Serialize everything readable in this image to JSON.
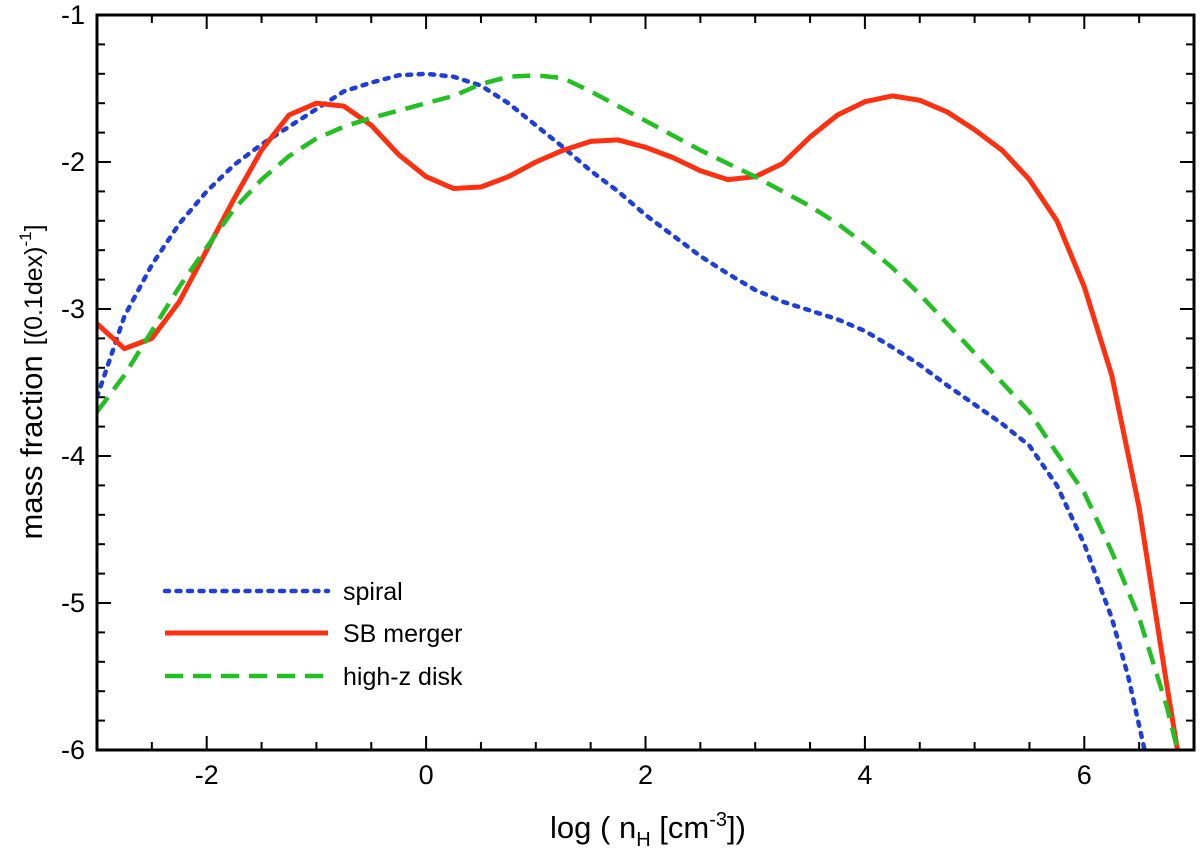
{
  "chart_data": {
    "type": "line",
    "title": "",
    "xlabel": {
      "prefix": "log ( n",
      "sub": "H",
      "mid": " [cm",
      "sup": "-3",
      "suffix": "])"
    },
    "ylabel": {
      "main": "mass fraction",
      "bracket_open": "[(0.1dex)",
      "sup": "-1",
      "bracket_close": "]"
    },
    "xlim": [
      -3,
      7
    ],
    "ylim": [
      -6,
      -1
    ],
    "x_ticks": [
      -2,
      0,
      2,
      4,
      6
    ],
    "x_tick_labels": [
      "-2",
      "0",
      "2",
      "4",
      "6"
    ],
    "y_ticks": [
      -6,
      -5,
      -4,
      -3,
      -2,
      -1
    ],
    "y_tick_labels": [
      "-6",
      "-5",
      "-4",
      "-3",
      "-2",
      "-1"
    ],
    "legend_position": "bottom-left",
    "series": [
      {
        "name": "spiral",
        "color": "#1f3fd8",
        "style": "dotted",
        "points": [
          [
            -3,
            -3.6
          ],
          [
            -2.75,
            -3.05
          ],
          [
            -2.5,
            -2.7
          ],
          [
            -2.25,
            -2.42
          ],
          [
            -2,
            -2.2
          ],
          [
            -1.75,
            -2.02
          ],
          [
            -1.5,
            -1.88
          ],
          [
            -1.25,
            -1.76
          ],
          [
            -1,
            -1.64
          ],
          [
            -0.75,
            -1.52
          ],
          [
            -0.5,
            -1.46
          ],
          [
            -0.25,
            -1.41
          ],
          [
            0,
            -1.4
          ],
          [
            0.25,
            -1.42
          ],
          [
            0.5,
            -1.48
          ],
          [
            0.75,
            -1.6
          ],
          [
            1,
            -1.75
          ],
          [
            1.25,
            -1.9
          ],
          [
            1.5,
            -2.06
          ],
          [
            1.75,
            -2.2
          ],
          [
            2,
            -2.36
          ],
          [
            2.25,
            -2.5
          ],
          [
            2.5,
            -2.64
          ],
          [
            2.75,
            -2.76
          ],
          [
            3,
            -2.87
          ],
          [
            3.25,
            -2.95
          ],
          [
            3.5,
            -3.01
          ],
          [
            3.75,
            -3.07
          ],
          [
            4,
            -3.15
          ],
          [
            4.25,
            -3.26
          ],
          [
            4.5,
            -3.38
          ],
          [
            4.75,
            -3.52
          ],
          [
            5,
            -3.65
          ],
          [
            5.25,
            -3.78
          ],
          [
            5.5,
            -3.93
          ],
          [
            5.75,
            -4.2
          ],
          [
            6,
            -4.6
          ],
          [
            6.25,
            -5.1
          ],
          [
            6.4,
            -5.5
          ],
          [
            6.55,
            -6
          ]
        ]
      },
      {
        "name": "SB merger",
        "color": "#ff3010",
        "style": "solid",
        "points": [
          [
            -3,
            -3.1
          ],
          [
            -2.75,
            -3.27
          ],
          [
            -2.5,
            -3.2
          ],
          [
            -2.25,
            -2.95
          ],
          [
            -2,
            -2.6
          ],
          [
            -1.75,
            -2.25
          ],
          [
            -1.5,
            -1.92
          ],
          [
            -1.25,
            -1.68
          ],
          [
            -1,
            -1.6
          ],
          [
            -0.75,
            -1.62
          ],
          [
            -0.5,
            -1.75
          ],
          [
            -0.25,
            -1.95
          ],
          [
            0,
            -2.1
          ],
          [
            0.25,
            -2.18
          ],
          [
            0.5,
            -2.17
          ],
          [
            0.75,
            -2.1
          ],
          [
            1,
            -2
          ],
          [
            1.25,
            -1.92
          ],
          [
            1.5,
            -1.86
          ],
          [
            1.75,
            -1.85
          ],
          [
            2,
            -1.9
          ],
          [
            2.25,
            -1.97
          ],
          [
            2.5,
            -2.06
          ],
          [
            2.75,
            -2.12
          ],
          [
            3,
            -2.1
          ],
          [
            3.25,
            -2.01
          ],
          [
            3.5,
            -1.83
          ],
          [
            3.75,
            -1.68
          ],
          [
            4,
            -1.59
          ],
          [
            4.25,
            -1.55
          ],
          [
            4.5,
            -1.58
          ],
          [
            4.75,
            -1.66
          ],
          [
            5,
            -1.78
          ],
          [
            5.25,
            -1.92
          ],
          [
            5.5,
            -2.12
          ],
          [
            5.75,
            -2.4
          ],
          [
            6,
            -2.85
          ],
          [
            6.25,
            -3.45
          ],
          [
            6.5,
            -4.35
          ],
          [
            6.75,
            -5.55
          ],
          [
            6.85,
            -6
          ]
        ]
      },
      {
        "name": "high-z disk",
        "color": "#22c022",
        "style": "dashed",
        "points": [
          [
            -3,
            -3.7
          ],
          [
            -2.75,
            -3.45
          ],
          [
            -2.5,
            -3.15
          ],
          [
            -2.25,
            -2.85
          ],
          [
            -2,
            -2.58
          ],
          [
            -1.75,
            -2.32
          ],
          [
            -1.5,
            -2.12
          ],
          [
            -1.25,
            -1.96
          ],
          [
            -1,
            -1.84
          ],
          [
            -0.75,
            -1.76
          ],
          [
            -0.5,
            -1.7
          ],
          [
            -0.25,
            -1.65
          ],
          [
            0,
            -1.6
          ],
          [
            0.25,
            -1.55
          ],
          [
            0.5,
            -1.47
          ],
          [
            0.75,
            -1.42
          ],
          [
            1,
            -1.41
          ],
          [
            1.25,
            -1.43
          ],
          [
            1.5,
            -1.52
          ],
          [
            1.75,
            -1.62
          ],
          [
            2,
            -1.72
          ],
          [
            2.25,
            -1.82
          ],
          [
            2.5,
            -1.92
          ],
          [
            2.75,
            -2.01
          ],
          [
            3,
            -2.1
          ],
          [
            3.25,
            -2.2
          ],
          [
            3.5,
            -2.3
          ],
          [
            3.75,
            -2.42
          ],
          [
            4,
            -2.56
          ],
          [
            4.25,
            -2.72
          ],
          [
            4.5,
            -2.9
          ],
          [
            4.75,
            -3.1
          ],
          [
            5,
            -3.3
          ],
          [
            5.25,
            -3.5
          ],
          [
            5.5,
            -3.7
          ],
          [
            5.75,
            -3.98
          ],
          [
            6,
            -4.25
          ],
          [
            6.25,
            -4.65
          ],
          [
            6.5,
            -5.1
          ],
          [
            6.75,
            -5.7
          ],
          [
            6.85,
            -6
          ]
        ]
      }
    ]
  }
}
